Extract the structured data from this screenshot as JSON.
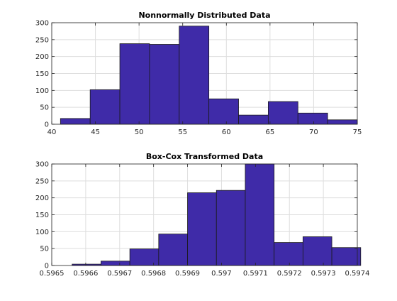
{
  "chart_data": [
    {
      "type": "bar",
      "title": "Nonnormally Distributed Data",
      "xlabel": "",
      "ylabel": "",
      "xlim": [
        40,
        75
      ],
      "ylim": [
        0,
        300
      ],
      "xticks": [
        "40",
        "45",
        "50",
        "55",
        "60",
        "65",
        "70",
        "75"
      ],
      "yticks": [
        "0",
        "50",
        "100",
        "150",
        "200",
        "250",
        "300"
      ],
      "grid": true,
      "bin_edges": [
        41,
        44.4,
        47.8,
        51.2,
        54.6,
        58.0,
        61.4,
        64.8,
        68.2,
        71.6,
        75.0
      ],
      "values": [
        17,
        102,
        238,
        236,
        290,
        75,
        27,
        67,
        33,
        13
      ],
      "bar_color": "#3F2BA8",
      "edge_color": "#1a1a1a"
    },
    {
      "type": "bar",
      "title": "Box-Cox Transformed Data",
      "xlabel": "",
      "ylabel": "",
      "xlim": [
        0.5965,
        0.5974
      ],
      "ylim": [
        0,
        300
      ],
      "xticks": [
        "0.5965",
        "0.5966",
        "0.5967",
        "0.5968",
        "0.5969",
        "0.597",
        "0.5971",
        "0.5972",
        "0.5973",
        "0.5974"
      ],
      "yticks": [
        "0",
        "50",
        "100",
        "150",
        "200",
        "250",
        "300"
      ],
      "grid": true,
      "bin_edges": [
        0.59656,
        0.596645,
        0.59673,
        0.596815,
        0.5969,
        0.596985,
        0.59707,
        0.597155,
        0.59724,
        0.597325,
        0.59741
      ],
      "values": [
        4,
        13,
        49,
        93,
        215,
        222,
        300,
        68,
        85,
        53
      ],
      "bar_color": "#3F2BA8",
      "edge_color": "#1a1a1a"
    }
  ]
}
